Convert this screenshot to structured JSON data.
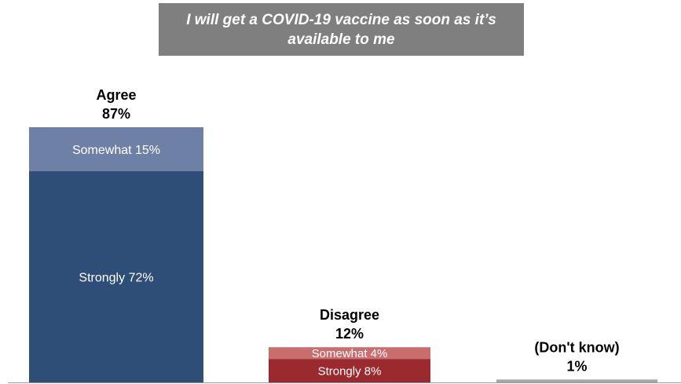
{
  "chart_data": {
    "type": "bar",
    "stacked": true,
    "title": "I will get a COVID-19 vaccine as soon as it’s available to me",
    "categories": [
      {
        "name": "Agree",
        "total_label": "87%",
        "total": 87,
        "segments": [
          {
            "name": "Strongly",
            "label": "Strongly 72%",
            "value": 72,
            "color": "#2e4e78"
          },
          {
            "name": "Somewhat",
            "label": "Somewhat 15%",
            "value": 15,
            "color": "#6f80a6"
          }
        ]
      },
      {
        "name": "Disagree",
        "total_label": "12%",
        "total": 12,
        "segments": [
          {
            "name": "Strongly",
            "label": "Strongly 8%",
            "value": 8,
            "color": "#9b2a2e"
          },
          {
            "name": "Somewhat",
            "label": "Somewhat 4%",
            "value": 4,
            "color": "#c96d6d"
          }
        ]
      },
      {
        "name": "(Don't know)",
        "total_label": "1%",
        "total": 1,
        "segments": [
          {
            "name": "Don't know",
            "label": "",
            "value": 1,
            "color": "#a6a6a6"
          }
        ]
      }
    ],
    "ylim": [
      0,
      100
    ],
    "grid": false,
    "legend": "none",
    "xlabel": "",
    "ylabel": ""
  }
}
